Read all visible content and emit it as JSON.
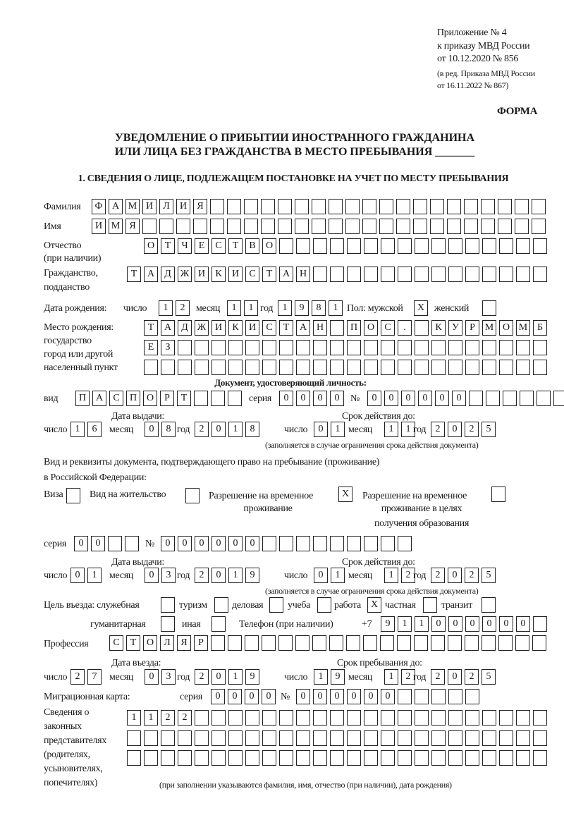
{
  "header": {
    "appendix": "Приложение № 4",
    "order_ref": "к приказу МВД России",
    "order_date": "от 10.12.2020 № 856",
    "edition_1": "(в ред. Приказа МВД России",
    "edition_2": "от 16.11.2022 № 867)",
    "form_label": "ФОРМА"
  },
  "title": {
    "line1": "УВЕДОМЛЕНИЕ О ПРИБЫТИИ ИНОСТРАННОГО ГРАЖДАНИНА",
    "line2": "ИЛИ ЛИЦА БЕЗ ГРАЖДАНСТВА В МЕСТО ПРЕБЫВАНИЯ _______"
  },
  "section1": "1. СВЕДЕНИЯ О ЛИЦЕ, ПОДЛЕЖАЩЕМ ПОСТАНОВКЕ НА УЧЕТ ПО МЕСТУ ПРЕБЫВАНИЯ",
  "labels": {
    "surname": "Фамилия",
    "name": "Имя",
    "patronymic": "Отчество",
    "patronymic_note": "(при наличии)",
    "citizenship": "Гражданство,",
    "citizenship_2": "подданство",
    "birth_date": "Дата рождения:",
    "day": "число",
    "month": "месяц",
    "year": "год",
    "sex": "Пол: мужской",
    "female": "женский",
    "birthplace": "Место рождения:",
    "birthplace_2": "государство",
    "birthplace_3": "город или другой",
    "birthplace_4": "населенный пункт",
    "id_doc": "Документ, удостоверяющий личность:",
    "kind": "вид",
    "series": "серия",
    "number": "№",
    "issue_date": "Дата выдачи:",
    "valid_until": "Срок действия до:",
    "validity_note": "(заполняется в случае ограничения срока действия документа)",
    "stay_doc_1": "Вид и реквизиты документа, подтверждающего право на пребывание (проживание)",
    "stay_doc_2": "в Российской Федерации:",
    "visa": "Виза",
    "residence_permit": "Вид на жительство",
    "temp_residence_1": "Разрешение на временное",
    "temp_residence_2": "проживание",
    "temp_edu_1": "Разрешение на временное",
    "temp_edu_2": "проживание в целях",
    "temp_edu_3": "получения образования",
    "purpose": "Цель въезда: служебная",
    "tourism": "туризм",
    "business": "деловая",
    "study": "учеба",
    "work": "работа",
    "private": "частная",
    "transit": "транзит",
    "humanitarian": "гуманитарная",
    "other": "иная",
    "phone": "Телефон (при наличии)",
    "phone_prefix": "+7",
    "profession": "Профессия",
    "entry_date": "Дата въезда:",
    "stay_until": "Срок пребывания до:",
    "migration_card": "Миграционная карта:",
    "reps_1": "Сведения о",
    "reps_2": "законных",
    "reps_3": "представителях",
    "reps_4": "(родителях,",
    "reps_5": "усыновителях,",
    "reps_6": "попечителях)",
    "reps_note": "(при заполнении указываются фамилия, имя, отчество (при наличии), дата рождения)"
  },
  "fields": {
    "surname": {
      "value": "ФАМИЛИЯ",
      "cells": 27
    },
    "name": {
      "value": "ИМЯ",
      "cells": 27
    },
    "patronymic": {
      "value": "ОТЧЕСТВО",
      "cells": 24
    },
    "citizenship": {
      "value": "ТАДЖИКИСТАН",
      "cells": 25
    },
    "birth_day": {
      "value": "12",
      "cells": 2
    },
    "birth_month": {
      "value": "11",
      "cells": 2
    },
    "birth_year": {
      "value": "1981",
      "cells": 4
    },
    "sex_male": {
      "value": "X",
      "cells": 1
    },
    "sex_female": {
      "value": "",
      "cells": 1
    },
    "birthplace_1": {
      "value": "ТАДЖИКИСТАН ПОС. КУРМОМБ",
      "cells": 24
    },
    "birthplace_2": {
      "value": "ЕЗ",
      "cells": 24
    },
    "birthplace_3": {
      "value": "",
      "cells": 24
    },
    "id_kind": {
      "value": "ПАСПОРТ",
      "cells": 10
    },
    "id_series": {
      "value": "0000",
      "cells": 4
    },
    "id_number": {
      "value": "000000",
      "cells": 12
    },
    "id_issue_day": {
      "value": "16",
      "cells": 2
    },
    "id_issue_month": {
      "value": "08",
      "cells": 2
    },
    "id_issue_year": {
      "value": "2018",
      "cells": 4
    },
    "id_valid_day": {
      "value": "01",
      "cells": 2
    },
    "id_valid_month": {
      "value": "11",
      "cells": 2
    },
    "id_valid_year": {
      "value": "2025",
      "cells": 4
    },
    "visa": {
      "value": "",
      "cells": 1
    },
    "residence_permit": {
      "value": "",
      "cells": 1
    },
    "temp_residence": {
      "value": "X",
      "cells": 1
    },
    "temp_edu": {
      "value": "",
      "cells": 1
    },
    "stay_series": {
      "value": "00",
      "cells": 4
    },
    "stay_number": {
      "value": "000000",
      "cells": 15
    },
    "stay_issue_day": {
      "value": "01",
      "cells": 2
    },
    "stay_issue_month": {
      "value": "03",
      "cells": 2
    },
    "stay_issue_year": {
      "value": "2019",
      "cells": 4
    },
    "stay_valid_day": {
      "value": "01",
      "cells": 2
    },
    "stay_valid_month": {
      "value": "12",
      "cells": 2
    },
    "stay_valid_year": {
      "value": "2025",
      "cells": 4
    },
    "p_service": {
      "value": "",
      "cells": 1
    },
    "p_tourism": {
      "value": "",
      "cells": 1
    },
    "p_business": {
      "value": "",
      "cells": 1
    },
    "p_study": {
      "value": "",
      "cells": 1
    },
    "p_work": {
      "value": "X",
      "cells": 1
    },
    "p_private": {
      "value": "",
      "cells": 1
    },
    "p_transit": {
      "value": "",
      "cells": 1
    },
    "p_humanitarian": {
      "value": "",
      "cells": 1
    },
    "p_other": {
      "value": "",
      "cells": 1
    },
    "phone": {
      "value": "911000000",
      "cells": 10
    },
    "profession": {
      "value": "СТОЛЯР",
      "cells": 26
    },
    "entry_day": {
      "value": "27",
      "cells": 2
    },
    "entry_month": {
      "value": "03",
      "cells": 2
    },
    "entry_year": {
      "value": "2019",
      "cells": 4
    },
    "stay_until_day": {
      "value": "19",
      "cells": 2
    },
    "stay_until_month": {
      "value": "12",
      "cells": 2
    },
    "stay_until_year": {
      "value": "2025",
      "cells": 4
    },
    "mc_series": {
      "value": "0000",
      "cells": 4
    },
    "mc_number": {
      "value": "000000",
      "cells": 11
    },
    "reps_1": {
      "value": "1122",
      "cells": 25
    },
    "reps_2": {
      "value": "",
      "cells": 25
    },
    "reps_3": {
      "value": "",
      "cells": 25
    }
  }
}
